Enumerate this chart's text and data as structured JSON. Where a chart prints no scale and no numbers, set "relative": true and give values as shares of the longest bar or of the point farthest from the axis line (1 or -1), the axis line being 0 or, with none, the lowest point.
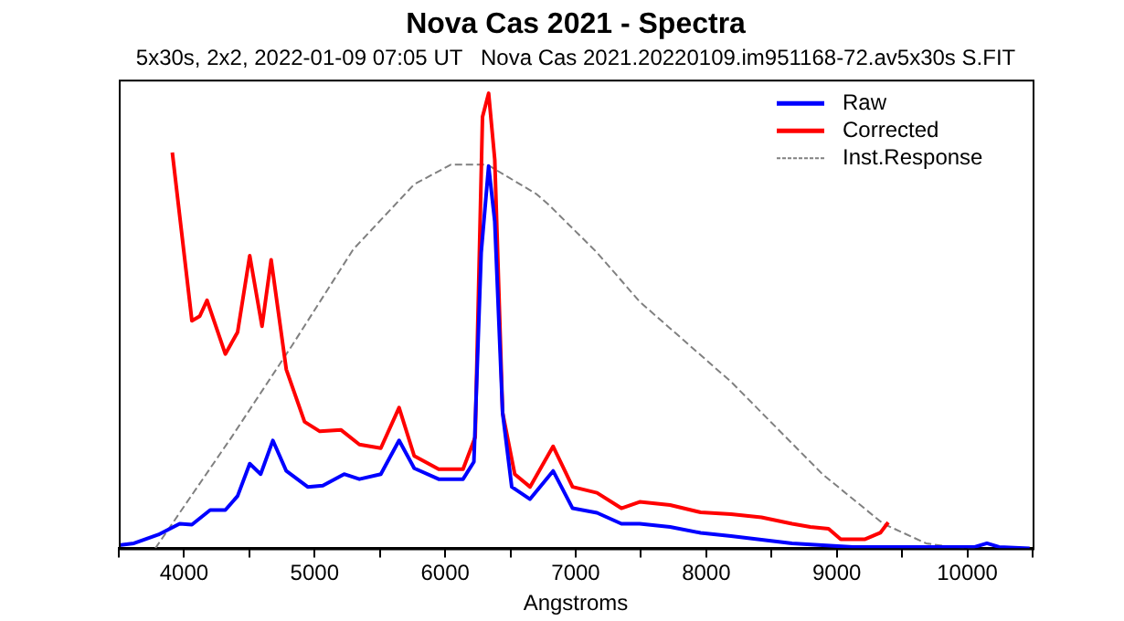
{
  "chart_data": {
    "type": "line",
    "title": "Nova Cas 2021 - Spectra",
    "subtitle": "5x30s, 2x2, 2022-01-09 07:05 UT   Nova Cas 2021.20220109.im951168-72.av5x30s S.FIT",
    "xlabel": "Angstroms",
    "relative": true,
    "xlim": [
      3500,
      10500
    ],
    "xticks": [
      {
        "value": 3500,
        "label": null
      },
      4000,
      {
        "value": 4500,
        "label": null
      },
      5000,
      {
        "value": 5500,
        "label": null
      },
      6000,
      {
        "value": 6500,
        "label": null
      },
      7000,
      {
        "value": 7500,
        "label": null
      },
      8000,
      {
        "value": 8500,
        "label": null
      },
      9000,
      {
        "value": 9500,
        "label": null
      },
      10000,
      {
        "value": 10500,
        "label": null
      }
    ],
    "grid": false,
    "legend": "top right",
    "marker": "none",
    "line_style": "solid",
    "series": [
      {
        "name": "Raw",
        "color": "#0000ff",
        "x": [
          3500,
          3616,
          3803,
          3966,
          4060,
          4200,
          4316,
          4410,
          4503,
          4587,
          4680,
          4783,
          4947,
          5063,
          5226,
          5343,
          5507,
          5647,
          5763,
          5950,
          6137,
          6220,
          6276,
          6333,
          6380,
          6440,
          6510,
          6650,
          6827,
          6976,
          7163,
          7350,
          7490,
          7723,
          7957,
          8190,
          8657,
          9123,
          9590,
          10057,
          10150,
          10243,
          10477
        ],
        "values": [
          0.007,
          0.011,
          0.03,
          0.054,
          0.052,
          0.084,
          0.084,
          0.115,
          0.186,
          0.163,
          0.237,
          0.17,
          0.135,
          0.138,
          0.163,
          0.152,
          0.163,
          0.237,
          0.176,
          0.152,
          0.152,
          0.19,
          0.65,
          0.84,
          0.718,
          0.298,
          0.135,
          0.108,
          0.17,
          0.088,
          0.078,
          0.054,
          0.054,
          0.047,
          0.034,
          0.027,
          0.011,
          0.003,
          0.003,
          0.003,
          0.011,
          0.003,
          0
        ]
      },
      {
        "name": "Corrected",
        "color": "#ff0000",
        "x": [
          3910,
          4060,
          4120,
          4176,
          4316,
          4410,
          4503,
          4597,
          4667,
          4783,
          4923,
          5040,
          5203,
          5343,
          5507,
          5647,
          5763,
          5950,
          6137,
          6230,
          6286,
          6333,
          6380,
          6440,
          6533,
          6650,
          6827,
          6976,
          7163,
          7350,
          7490,
          7723,
          7957,
          8190,
          8423,
          8657,
          8797,
          8937,
          9030,
          9217,
          9333,
          9394
        ],
        "values": [
          0.87,
          0.5,
          0.51,
          0.545,
          0.427,
          0.475,
          0.643,
          0.488,
          0.634,
          0.393,
          0.278,
          0.257,
          0.26,
          0.228,
          0.22,
          0.309,
          0.203,
          0.174,
          0.174,
          0.244,
          0.948,
          1,
          0.854,
          0.298,
          0.163,
          0.135,
          0.224,
          0.135,
          0.122,
          0.088,
          0.102,
          0.095,
          0.079,
          0.075,
          0.068,
          0.054,
          0.047,
          0.043,
          0.02,
          0.02,
          0.034,
          0.057
        ]
      },
      {
        "name": "Inst.Response",
        "color": "#808080",
        "line_style": "dashed",
        "x": [
          3780,
          4363,
          4830,
          5296,
          5763,
          6043,
          6323,
          6697,
          6790,
          7163,
          7490,
          8190,
          8890,
          9356,
          9683,
          9870,
          10057
        ],
        "values": [
          0,
          0.244,
          0.447,
          0.657,
          0.8,
          0.843,
          0.843,
          0.779,
          0.756,
          0.65,
          0.542,
          0.366,
          0.163,
          0.054,
          0.011,
          0.003,
          0
        ]
      }
    ]
  }
}
